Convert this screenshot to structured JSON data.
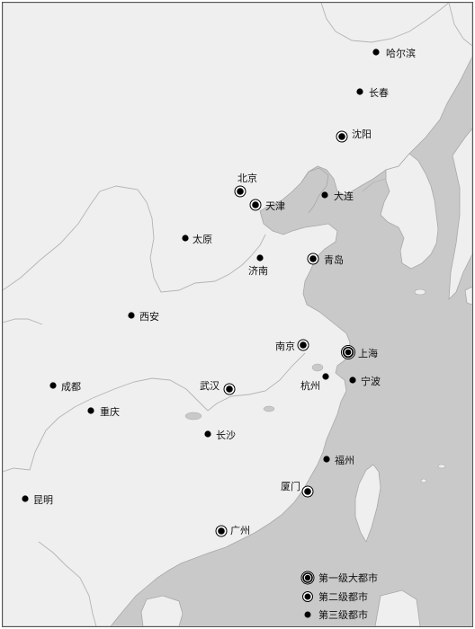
{
  "map": {
    "colors": {
      "sea": "#c9c9c9",
      "land": "#efefef",
      "border": "#b4b4b4",
      "marker": "#000000"
    },
    "cities": [
      {
        "name": "哈尔滨",
        "tier": 3
      },
      {
        "name": "长春",
        "tier": 3
      },
      {
        "name": "沈阳",
        "tier": 2
      },
      {
        "name": "北京",
        "tier": 2
      },
      {
        "name": "天津",
        "tier": 2
      },
      {
        "name": "大连",
        "tier": 3
      },
      {
        "name": "太原",
        "tier": 3
      },
      {
        "name": "济南",
        "tier": 3
      },
      {
        "name": "青岛",
        "tier": 2
      },
      {
        "name": "西安",
        "tier": 3
      },
      {
        "name": "南京",
        "tier": 2
      },
      {
        "name": "上海",
        "tier": 1
      },
      {
        "name": "杭州",
        "tier": 3
      },
      {
        "name": "宁波",
        "tier": 3
      },
      {
        "name": "成都",
        "tier": 3
      },
      {
        "name": "武汉",
        "tier": 2
      },
      {
        "name": "重庆",
        "tier": 3
      },
      {
        "name": "长沙",
        "tier": 3
      },
      {
        "name": "福州",
        "tier": 3
      },
      {
        "name": "厦门",
        "tier": 2
      },
      {
        "name": "昆明",
        "tier": 3
      },
      {
        "name": "广州",
        "tier": 2
      }
    ]
  },
  "legend": {
    "tier1": "第一级大都市",
    "tier2": "第二级都市",
    "tier3": "第三级都市"
  }
}
